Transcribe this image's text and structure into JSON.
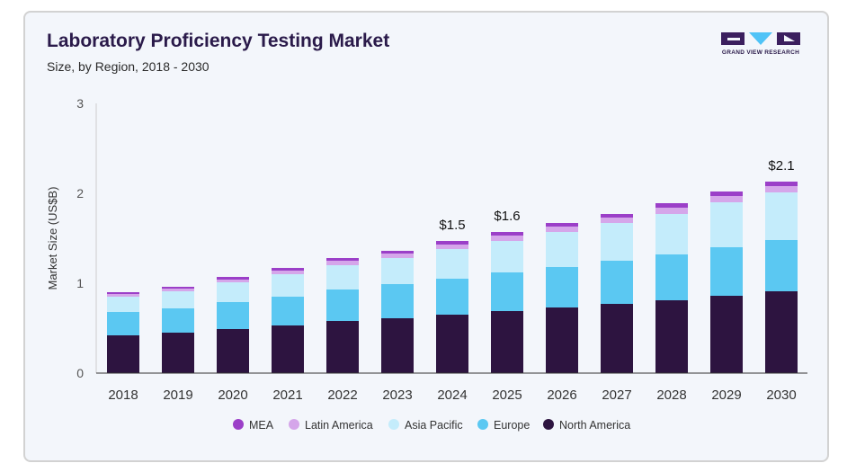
{
  "header": {
    "title": "Laboratory Proficiency Testing Market",
    "subtitle": "Size, by Region, 2018 - 2030"
  },
  "logo": {
    "text": "GRAND VIEW RESEARCH",
    "colors": {
      "dark": "#3b1f5e",
      "accent": "#4fc3f7"
    }
  },
  "chart_data": {
    "type": "bar",
    "stacked": true,
    "title": "Laboratory Proficiency Testing Market",
    "subtitle": "Size, by Region, 2018 - 2030",
    "xlabel": "",
    "ylabel": "Market Size (US$B)",
    "ylim": [
      0,
      3
    ],
    "yticks": [
      0,
      1,
      2,
      3
    ],
    "grid": false,
    "legend_position": "bottom",
    "categories": [
      "2018",
      "2019",
      "2020",
      "2021",
      "2022",
      "2023",
      "2024",
      "2025",
      "2026",
      "2027",
      "2028",
      "2029",
      "2030"
    ],
    "series": [
      {
        "name": "North America",
        "color": "#2d1440",
        "values": [
          0.42,
          0.45,
          0.49,
          0.53,
          0.58,
          0.61,
          0.65,
          0.69,
          0.73,
          0.77,
          0.81,
          0.86,
          0.91
        ]
      },
      {
        "name": "Europe",
        "color": "#5bc8f2",
        "values": [
          0.26,
          0.27,
          0.3,
          0.32,
          0.35,
          0.38,
          0.4,
          0.43,
          0.45,
          0.48,
          0.51,
          0.54,
          0.57
        ]
      },
      {
        "name": "Asia Pacific",
        "color": "#c4ecfb",
        "values": [
          0.17,
          0.19,
          0.22,
          0.25,
          0.27,
          0.29,
          0.33,
          0.35,
          0.39,
          0.42,
          0.45,
          0.5,
          0.53
        ]
      },
      {
        "name": "Latin America",
        "color": "#d5a6ea",
        "values": [
          0.03,
          0.03,
          0.03,
          0.04,
          0.05,
          0.05,
          0.05,
          0.06,
          0.06,
          0.06,
          0.07,
          0.07,
          0.07
        ]
      },
      {
        "name": "MEA",
        "color": "#9b3fc8",
        "values": [
          0.02,
          0.02,
          0.03,
          0.03,
          0.03,
          0.03,
          0.04,
          0.04,
          0.04,
          0.04,
          0.05,
          0.05,
          0.05
        ]
      }
    ],
    "legend_order": [
      "MEA",
      "Latin America",
      "Asia Pacific",
      "Europe",
      "North America"
    ],
    "annotations": [
      {
        "category": "2024",
        "text": "$1.5"
      },
      {
        "category": "2025",
        "text": "$1.6"
      },
      {
        "category": "2030",
        "text": "$2.1"
      }
    ]
  }
}
